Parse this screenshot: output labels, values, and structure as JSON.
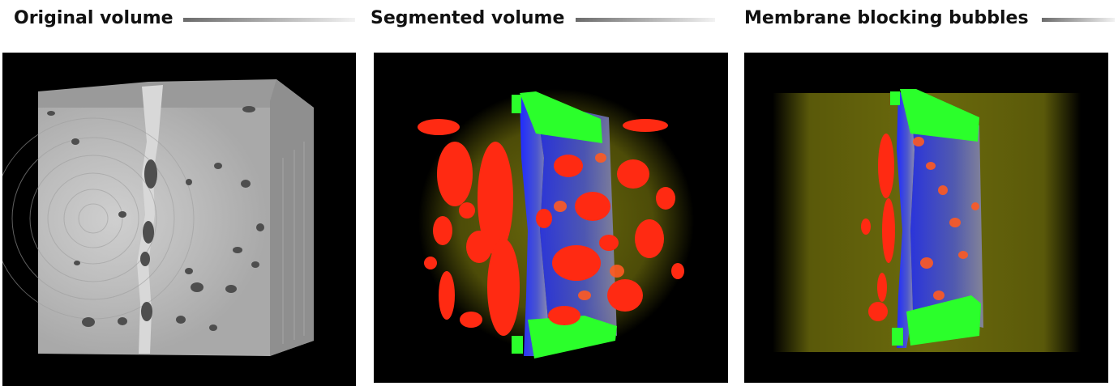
{
  "panels": [
    {
      "title": "Original volume"
    },
    {
      "title": "Segmented volume"
    },
    {
      "title": "Membrane blocking bubbles"
    }
  ],
  "colors": {
    "background_view": "#000000",
    "membrane": "#1f2bff",
    "bubbles": "#ff2a12",
    "gasket": "#2bff2b",
    "outer_volume": "#6b6a0c",
    "ct_gray": "#b9b9b9"
  }
}
